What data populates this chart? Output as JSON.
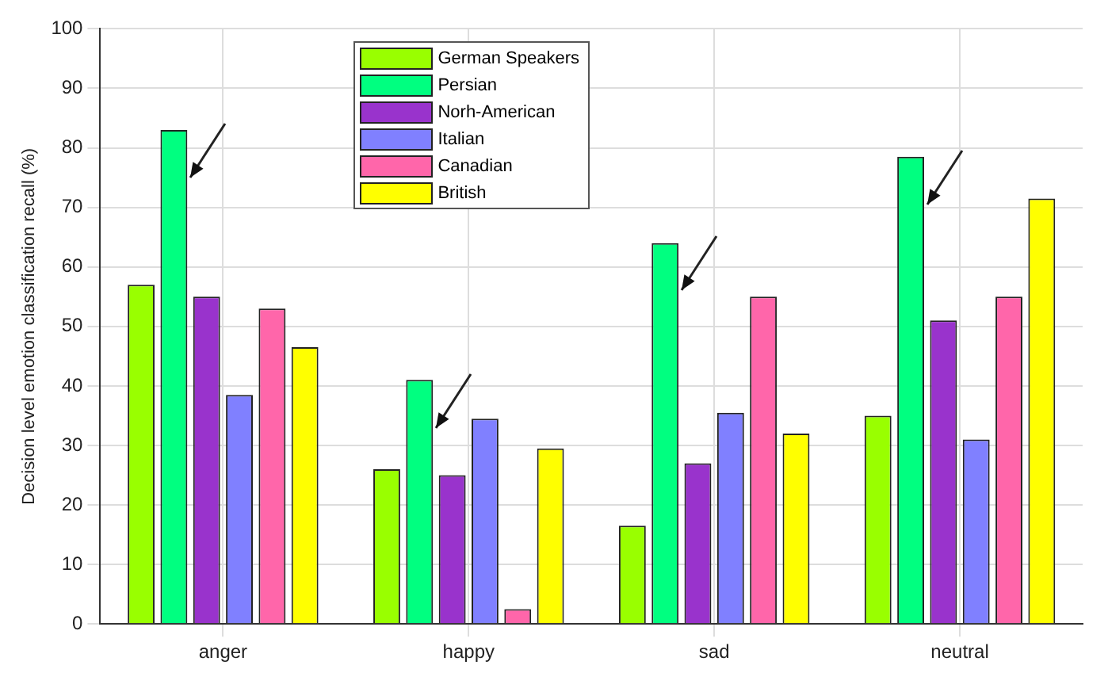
{
  "chart_data": {
    "type": "bar",
    "ylabel": "Decision level emotion classification recall (%)",
    "categories": [
      "anger",
      "happy",
      "sad",
      "neutral"
    ],
    "series": [
      {
        "name": "German Speakers",
        "color": "#99ff00",
        "values": [
          57,
          26,
          16.5,
          35
        ]
      },
      {
        "name": "Persian",
        "color": "#00ff80",
        "values": [
          83,
          41,
          64,
          78.5
        ]
      },
      {
        "name": "Norh-American",
        "color": "#9933cc",
        "values": [
          55,
          25,
          27,
          51
        ]
      },
      {
        "name": "Italian",
        "color": "#8080ff",
        "values": [
          38.5,
          34.5,
          35.5,
          31
        ]
      },
      {
        "name": "Canadian",
        "color": "#ff66aa",
        "values": [
          53,
          2.5,
          55,
          55
        ]
      },
      {
        "name": "British",
        "color": "#ffff00",
        "values": [
          46.5,
          29.5,
          32,
          71.5
        ]
      }
    ],
    "ylim": [
      0,
      100
    ],
    "yticks": [
      0,
      10,
      20,
      30,
      40,
      50,
      60,
      70,
      80,
      90,
      100
    ],
    "grid": true,
    "legend": "top"
  }
}
